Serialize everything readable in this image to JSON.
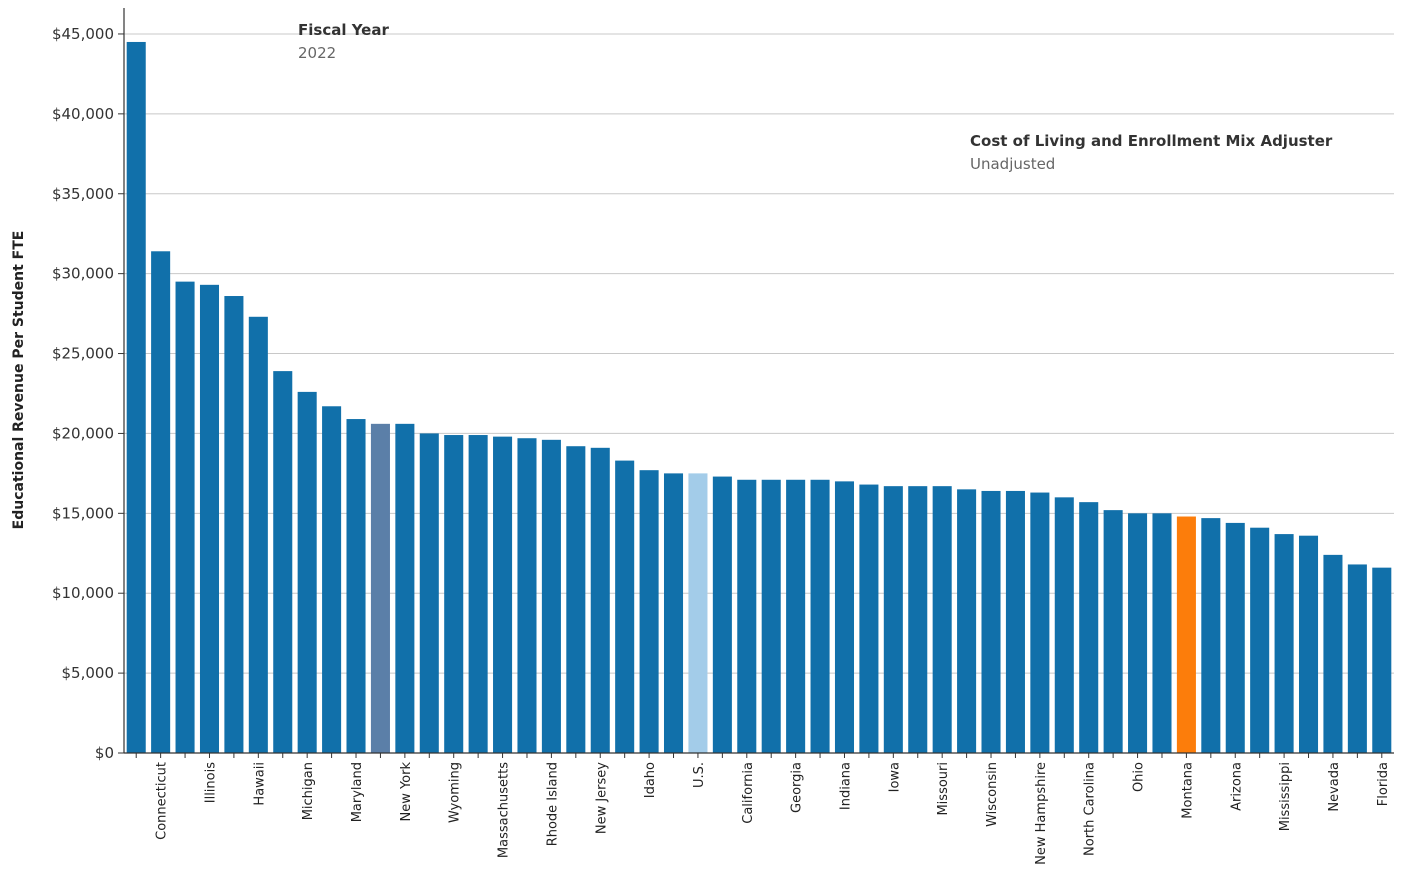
{
  "filters": {
    "fiscal_year": {
      "title": "Fiscal Year",
      "value": "2022"
    },
    "adjuster": {
      "title": "Cost of Living and Enrollment Mix Adjuster",
      "value": "Unadjusted"
    }
  },
  "colors": {
    "default": "#1170aa",
    "us": "#a3cce9",
    "montana": "#fc7d0b",
    "highlight": "#5b7fa8",
    "grid": "#c8c8c8",
    "axis": "#333333"
  },
  "chart_data": {
    "type": "bar",
    "ylabel": "Educational Revenue Per Student FTE",
    "ylim": [
      0,
      46500
    ],
    "yticks": [
      0,
      5000,
      10000,
      15000,
      20000,
      25000,
      30000,
      35000,
      40000,
      45000
    ],
    "ytick_labels": [
      "$0",
      "$5,000",
      "$10,000",
      "$15,000",
      "$20,000",
      "$25,000",
      "$30,000",
      "$35,000",
      "$40,000",
      "$45,000"
    ],
    "grid": true,
    "categories": [
      "",
      "Connecticut",
      "",
      "Illinois",
      "",
      "Hawaii",
      "",
      "Michigan",
      "",
      "Maryland",
      "",
      "New York",
      "",
      "Wyoming",
      "",
      "Massachusetts",
      "",
      "Rhode Island",
      "",
      "New Jersey",
      "",
      "Idaho",
      "",
      "U.S.",
      "",
      "California",
      "",
      "Georgia",
      "",
      "Indiana",
      "",
      "Iowa",
      "",
      "Missouri",
      "",
      "Wisconsin",
      "",
      "New Hampshire",
      "",
      "North Carolina",
      "",
      "Ohio",
      "",
      "Montana",
      "",
      "Arizona",
      "",
      "Mississippi",
      "",
      "Nevada",
      "",
      "Florida"
    ],
    "values": [
      44500,
      31400,
      29500,
      29300,
      28600,
      27300,
      23900,
      22600,
      21700,
      20900,
      20600,
      20600,
      20000,
      19900,
      19900,
      19800,
      19700,
      19600,
      19200,
      19100,
      18300,
      17700,
      17500,
      17500,
      17300,
      17100,
      17100,
      17100,
      17100,
      17000,
      16800,
      16700,
      16700,
      16700,
      16500,
      16400,
      16400,
      16300,
      16000,
      15700,
      15200,
      15000,
      15000,
      14800,
      14700,
      14400,
      14100,
      13700,
      13600,
      12400,
      11800,
      11600
    ],
    "highlight_index": {
      "highlight": 10,
      "us": 23,
      "montana": 43
    }
  }
}
